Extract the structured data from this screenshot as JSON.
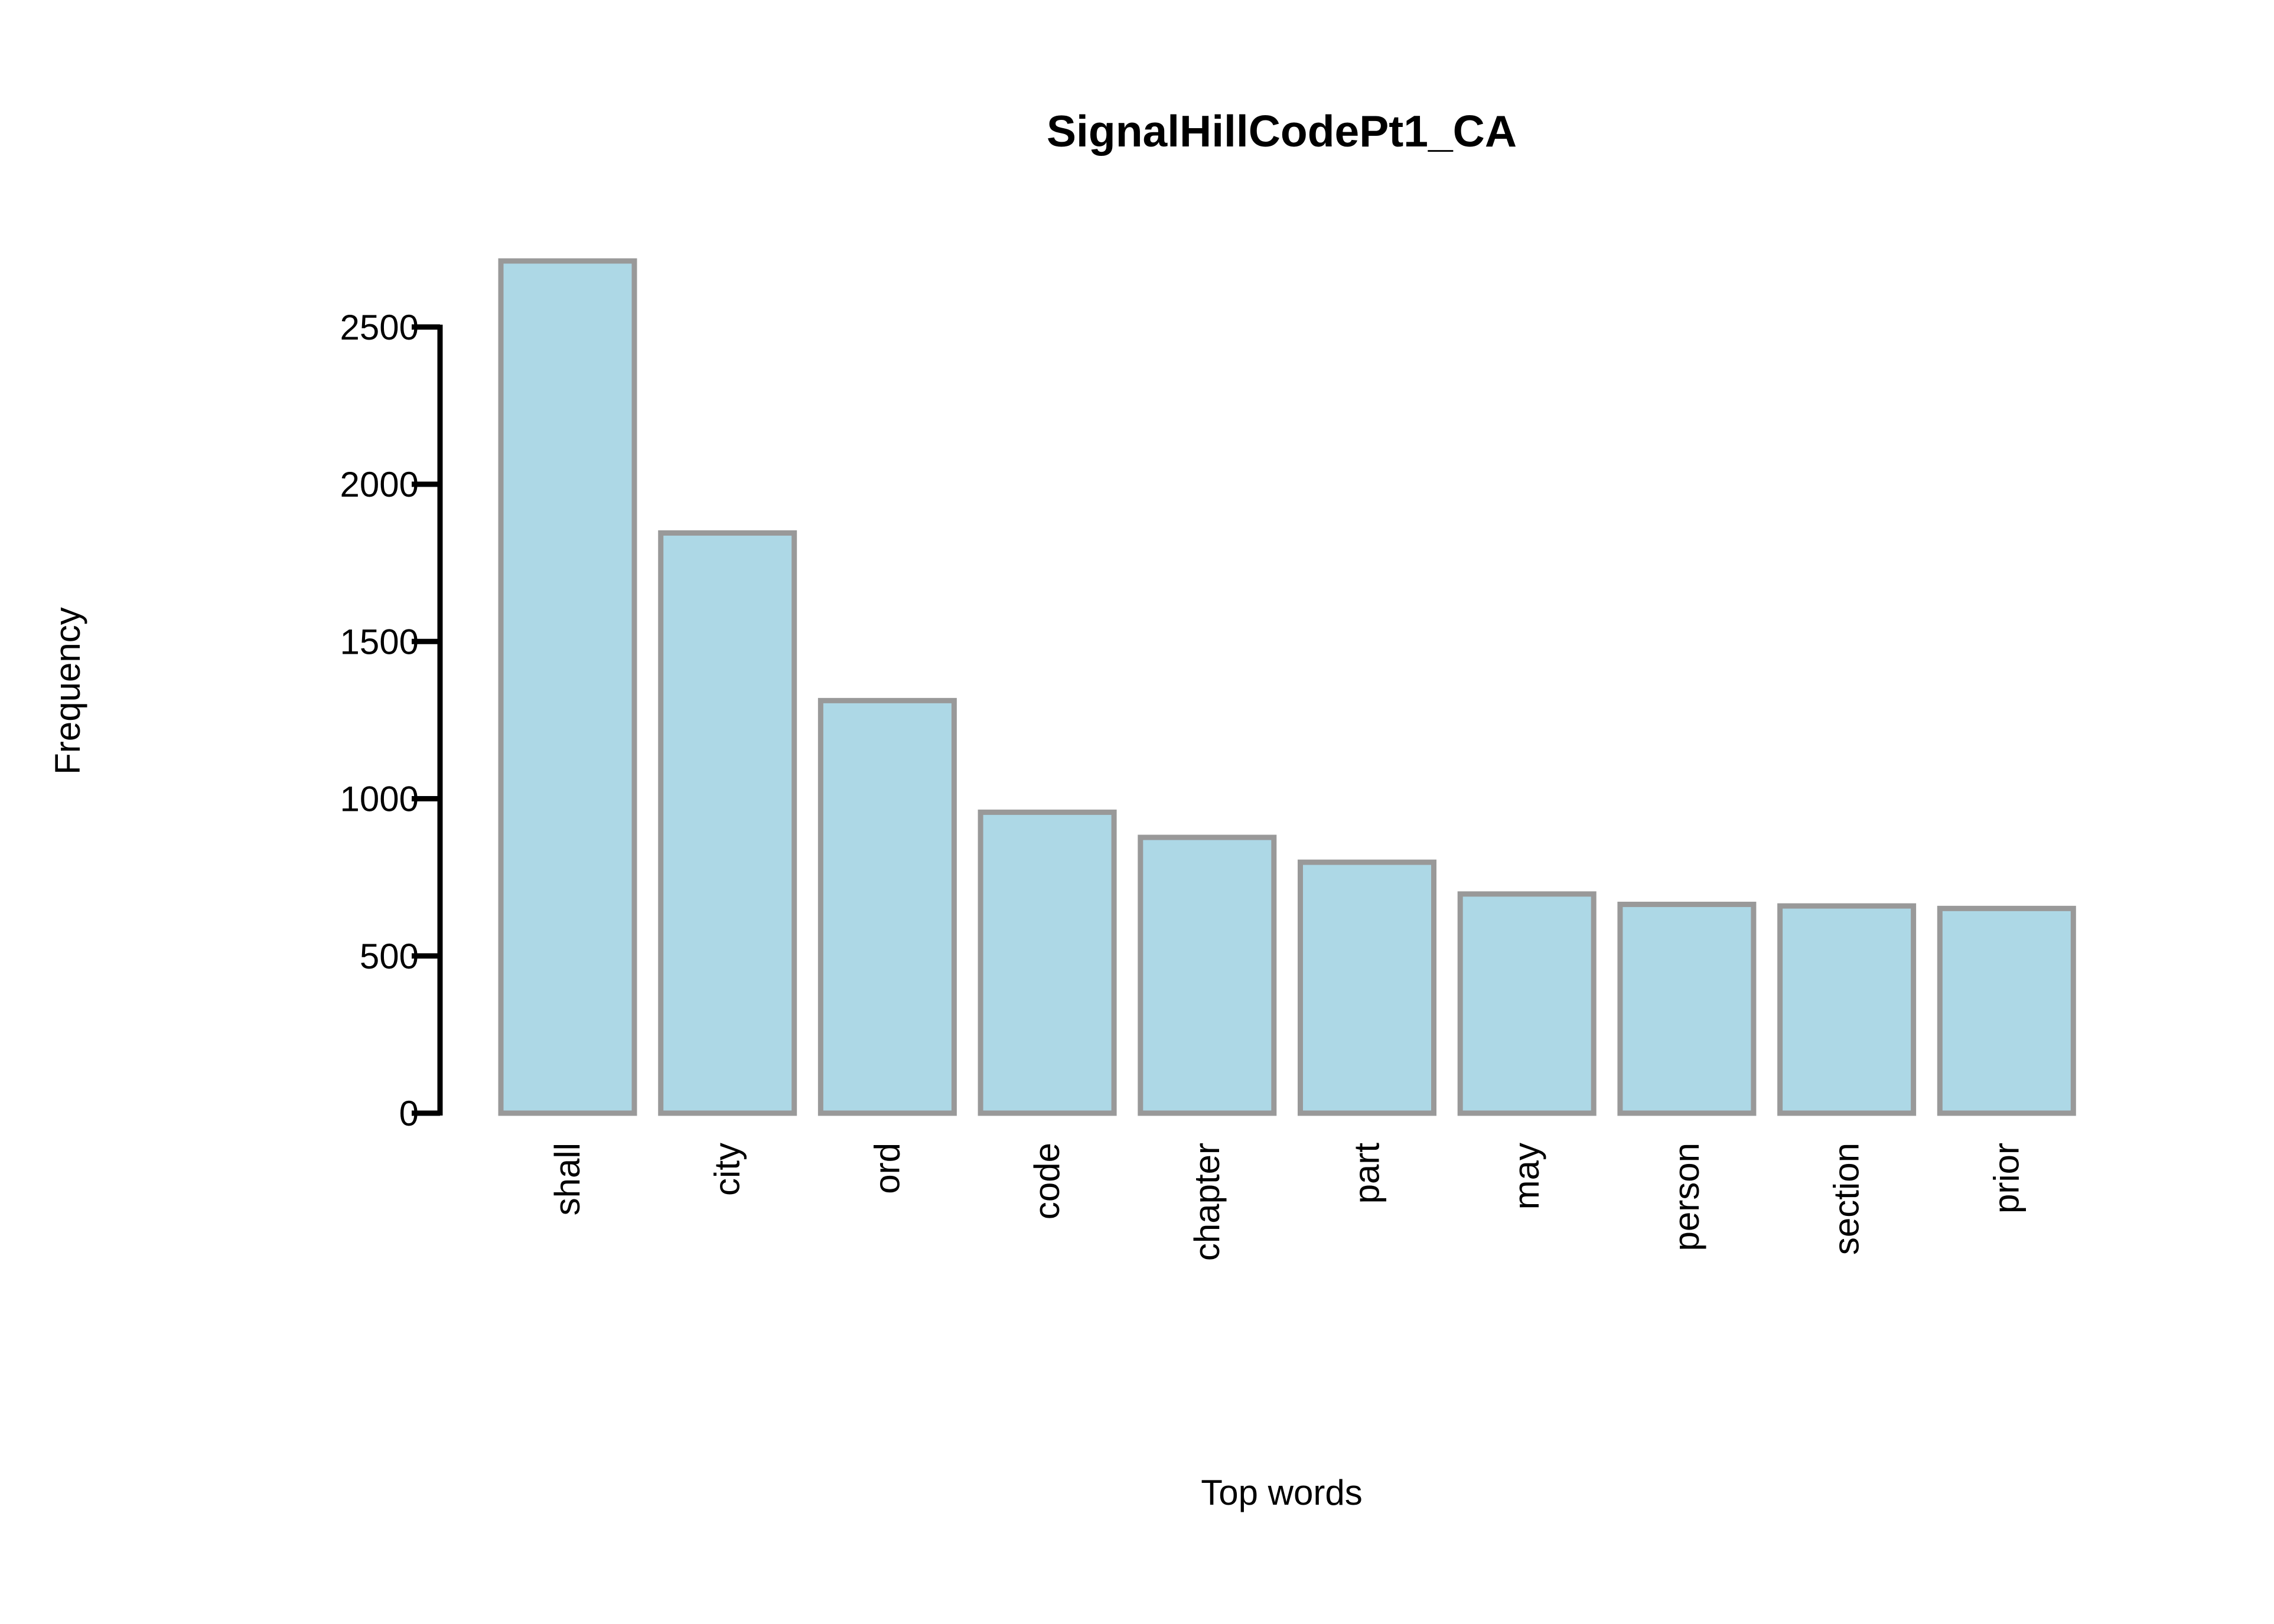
{
  "chart_data": {
    "type": "bar",
    "title": "SignalHillCodePt1_CA",
    "xlabel": "Top words",
    "ylabel": "Frequency",
    "categories": [
      "shall",
      "city",
      "ord",
      "code",
      "chapter",
      "part",
      "may",
      "person",
      "section",
      "prior"
    ],
    "values": [
      2710,
      1845,
      1312,
      957,
      877,
      798,
      697,
      664,
      659,
      651
    ],
    "ylim": [
      0,
      2500
    ],
    "yticks": [
      0,
      500,
      1000,
      1500,
      2000,
      2500
    ],
    "grid": false,
    "legend": "none",
    "colors": {
      "bar_fill": "#add8e6",
      "bar_stroke": "#999999",
      "axis": "#000000"
    }
  }
}
